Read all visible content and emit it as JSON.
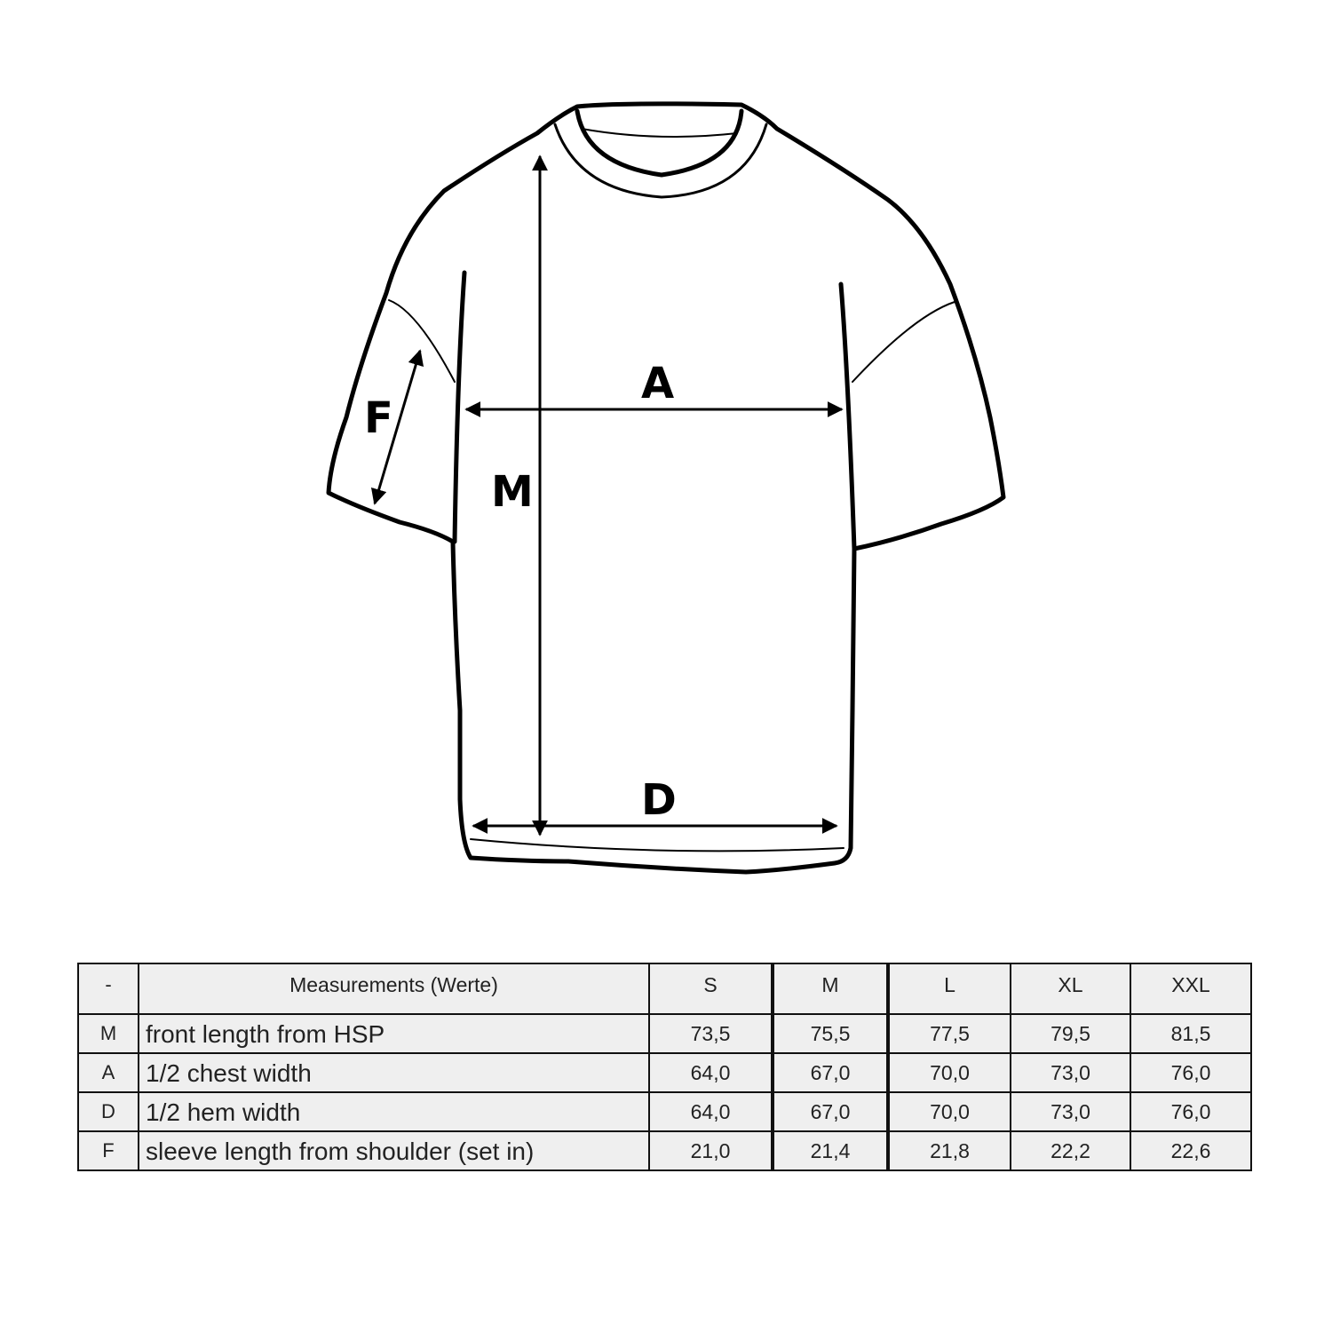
{
  "diagram": {
    "labels": {
      "chest": "A",
      "length": "M",
      "hem": "D",
      "sleeve": "F"
    },
    "line_color": "#000000"
  },
  "table": {
    "header": {
      "code": "-",
      "description": "Measurements (Werte)",
      "sizes": [
        "S",
        "M",
        "L",
        "XL",
        "XXL"
      ]
    },
    "rows": [
      {
        "code": "M",
        "description": "front length from HSP",
        "values": [
          "73,5",
          "75,5",
          "77,5",
          "79,5",
          "81,5"
        ]
      },
      {
        "code": "A",
        "description": "1/2 chest width",
        "values": [
          "64,0",
          "67,0",
          "70,0",
          "73,0",
          "76,0"
        ]
      },
      {
        "code": "D",
        "description": "1/2 hem width",
        "values": [
          "64,0",
          "67,0",
          "70,0",
          "73,0",
          "76,0"
        ]
      },
      {
        "code": "F",
        "description": "sleeve length from shoulder (set in)",
        "values": [
          "21,0",
          "21,4",
          "21,8",
          "22,2",
          "22,6"
        ]
      }
    ],
    "background": "#efefef"
  }
}
